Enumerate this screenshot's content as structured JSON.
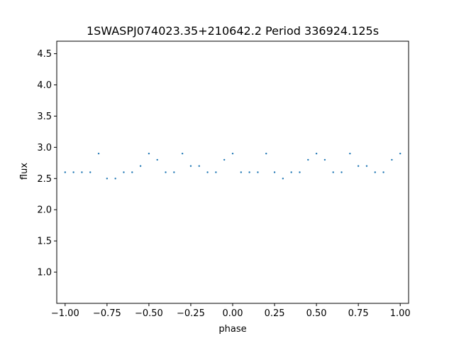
{
  "chart_data": {
    "type": "scatter",
    "title": "1SWASPJ074023.35+210642.2 Period 336924.125s",
    "xlabel": "phase",
    "ylabel": "flux",
    "xlim": [
      -1.05,
      1.05
    ],
    "ylim": [
      0.5,
      4.7
    ],
    "x_ticks": [
      -1.0,
      -0.75,
      -0.5,
      -0.25,
      0.0,
      0.25,
      0.5,
      0.75,
      1.0
    ],
    "x_tick_labels": [
      "−1.00",
      "−0.75",
      "−0.50",
      "−0.25",
      "0.00",
      "0.25",
      "0.50",
      "0.75",
      "1.00"
    ],
    "y_ticks": [
      1.0,
      1.5,
      2.0,
      2.5,
      3.0,
      3.5,
      4.0,
      4.5
    ],
    "y_tick_labels": [
      "1.0",
      "1.5",
      "2.0",
      "2.5",
      "3.0",
      "3.5",
      "4.0",
      "4.5"
    ],
    "grid": false,
    "marker_color": "#1f77b4",
    "series": [
      {
        "x": [
          -1.0,
          -0.95,
          -0.9,
          -0.85,
          -0.8,
          -0.75,
          -0.7,
          -0.65,
          -0.6,
          -0.55,
          -0.5,
          -0.45,
          -0.4,
          -0.35,
          -0.3,
          -0.25,
          -0.2,
          -0.15,
          -0.1,
          -0.05,
          0.0,
          0.05,
          0.1,
          0.15,
          0.2,
          0.25,
          0.3,
          0.35,
          0.4,
          0.45,
          0.5,
          0.55,
          0.6,
          0.65,
          0.7,
          0.75,
          0.8,
          0.85,
          0.9,
          0.95,
          1.0
        ],
        "y": [
          2.6,
          2.6,
          2.6,
          2.6,
          2.9,
          2.5,
          2.5,
          2.6,
          2.6,
          2.7,
          2.9,
          2.8,
          2.6,
          2.6,
          2.9,
          2.7,
          2.7,
          2.6,
          2.6,
          2.8,
          2.9,
          2.6,
          2.6,
          2.6,
          2.9,
          2.6,
          2.5,
          2.6,
          2.6,
          2.8,
          2.9,
          2.8,
          2.6,
          2.6,
          2.9,
          2.7,
          2.7,
          2.6,
          2.6,
          2.8,
          2.9
        ]
      }
    ]
  }
}
